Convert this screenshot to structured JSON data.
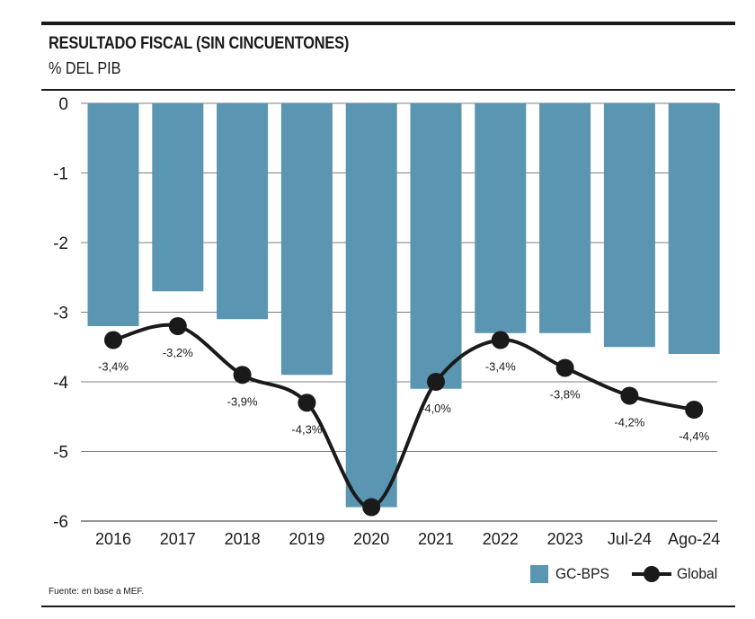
{
  "header": {
    "title": "RESULTADO FISCAL (SIN CINCUENTONES)",
    "subtitle": "% DEL PIB"
  },
  "footer": {
    "source": "Fuente: en base a MEF."
  },
  "colors": {
    "bar": "#5a95b1",
    "line": "#1a1a1a",
    "grid": "#555555"
  },
  "chart_data": {
    "type": "bar",
    "categories": [
      "2016",
      "2017",
      "2018",
      "2019",
      "2020",
      "2021",
      "2022",
      "2023",
      "Jul-24",
      "Ago-24"
    ],
    "ylim": [
      -6,
      0
    ],
    "yticks": [
      "0",
      "-1",
      "-2",
      "-3",
      "-4",
      "-5",
      "-6"
    ],
    "grid": true,
    "legend_position": "bottom-right",
    "series": [
      {
        "name": "GC-BPS",
        "type": "bar",
        "values": [
          -3.2,
          -2.7,
          -3.1,
          -3.9,
          -5.8,
          -4.1,
          -3.3,
          -3.3,
          -3.5,
          -3.6
        ]
      },
      {
        "name": "Global",
        "type": "line",
        "values": [
          -3.4,
          -3.2,
          -3.9,
          -4.3,
          -5.8,
          -4.0,
          -3.4,
          -3.8,
          -4.2,
          -4.4
        ],
        "labels": [
          "-3,4%",
          "-3,2%",
          "-3,9%",
          "-4,3%",
          "",
          "-4,0%",
          "-3,4%",
          "-3,8%",
          "-4,2%",
          "-4,4%"
        ]
      }
    ]
  }
}
